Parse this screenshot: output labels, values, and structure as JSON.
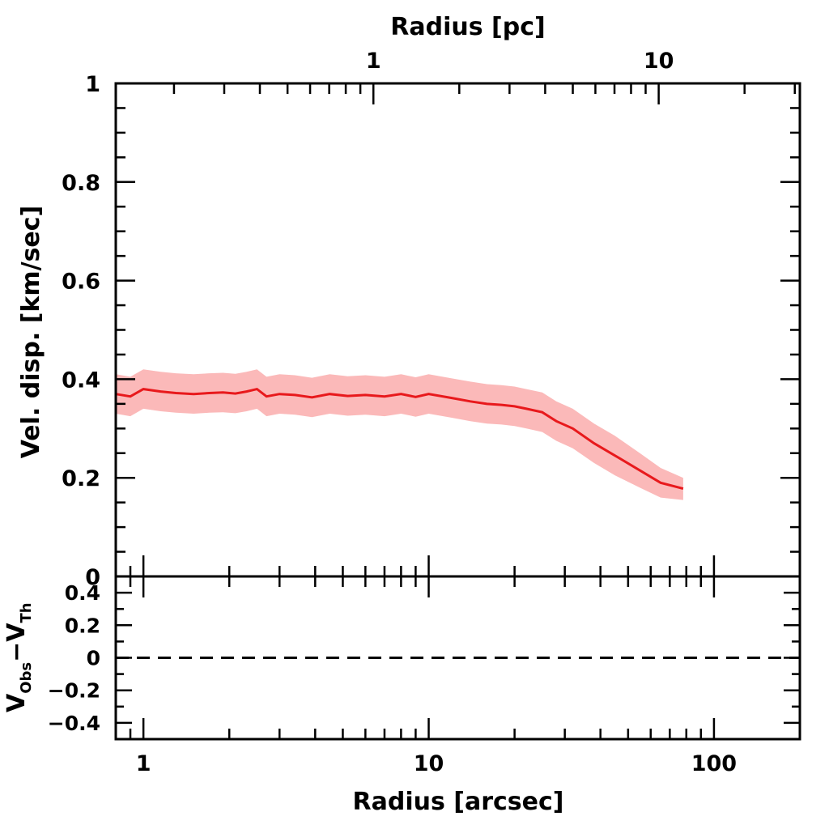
{
  "chart_data": [
    {
      "type": "line",
      "panel": "main",
      "xlabel": "Radius [arcsec]",
      "x2label": "Radius [pc]",
      "ylabel": "Vel. disp. [km/sec]",
      "xscale": "log",
      "xlim": [
        0.8,
        200
      ],
      "ylim": [
        0,
        1
      ],
      "x2_tick_labels": [
        "1",
        "10"
      ],
      "x2_ticks_arcsec": [
        6.4,
        64
      ],
      "y_ticks": [
        0,
        0.2,
        0.4,
        0.6,
        0.8,
        1
      ],
      "y_tick_labels": [
        "0",
        "0.2",
        "0.4",
        "0.6",
        "0.8",
        "1"
      ],
      "colors": {
        "line": "#e8191c",
        "band": "#fbb9b9"
      },
      "series": [
        {
          "x": [
            0.8,
            0.9,
            1.0,
            1.15,
            1.3,
            1.5,
            1.7,
            1.9,
            2.1,
            2.3,
            2.5,
            2.7,
            3.0,
            3.4,
            3.9,
            4.5,
            5.2,
            6.0,
            7.0,
            8.0,
            9.0,
            10,
            12,
            14,
            16,
            18,
            20,
            22,
            25,
            28,
            32,
            38,
            45,
            55,
            65,
            78
          ],
          "y": [
            0.37,
            0.365,
            0.38,
            0.375,
            0.372,
            0.37,
            0.372,
            0.373,
            0.371,
            0.375,
            0.38,
            0.365,
            0.37,
            0.368,
            0.363,
            0.37,
            0.366,
            0.368,
            0.365,
            0.37,
            0.364,
            0.37,
            0.362,
            0.355,
            0.35,
            0.348,
            0.345,
            0.34,
            0.333,
            0.315,
            0.3,
            0.27,
            0.245,
            0.215,
            0.19,
            0.178
          ],
          "lower": [
            0.33,
            0.325,
            0.34,
            0.335,
            0.332,
            0.33,
            0.332,
            0.333,
            0.331,
            0.335,
            0.34,
            0.325,
            0.33,
            0.328,
            0.323,
            0.33,
            0.326,
            0.328,
            0.325,
            0.33,
            0.324,
            0.33,
            0.322,
            0.315,
            0.31,
            0.308,
            0.305,
            0.3,
            0.293,
            0.275,
            0.26,
            0.23,
            0.205,
            0.18,
            0.16,
            0.155
          ],
          "upper": [
            0.41,
            0.405,
            0.42,
            0.415,
            0.412,
            0.41,
            0.412,
            0.413,
            0.411,
            0.415,
            0.42,
            0.405,
            0.41,
            0.408,
            0.403,
            0.41,
            0.406,
            0.408,
            0.405,
            0.41,
            0.404,
            0.41,
            0.402,
            0.395,
            0.39,
            0.388,
            0.385,
            0.38,
            0.373,
            0.355,
            0.34,
            0.31,
            0.285,
            0.25,
            0.22,
            0.2
          ]
        }
      ]
    },
    {
      "type": "line",
      "panel": "residual",
      "xlabel": "Radius [arcsec]",
      "ylabel_main": "V",
      "ylabel_sub1": "Obs",
      "ylabel_mid": "−V",
      "ylabel_sub2": "Th",
      "xscale": "log",
      "xlim": [
        0.8,
        200
      ],
      "ylim": [
        -0.5,
        0.5
      ],
      "x_ticks": [
        1,
        10,
        100
      ],
      "x_tick_labels": [
        "1",
        "10",
        "100"
      ],
      "y_ticks": [
        -0.4,
        -0.2,
        0,
        0.2,
        0.4
      ],
      "y_tick_labels": [
        "−0.4",
        "−0.2",
        "0",
        "0.2",
        "0.4"
      ],
      "reference_line": 0,
      "reference_style": "dashed"
    }
  ]
}
